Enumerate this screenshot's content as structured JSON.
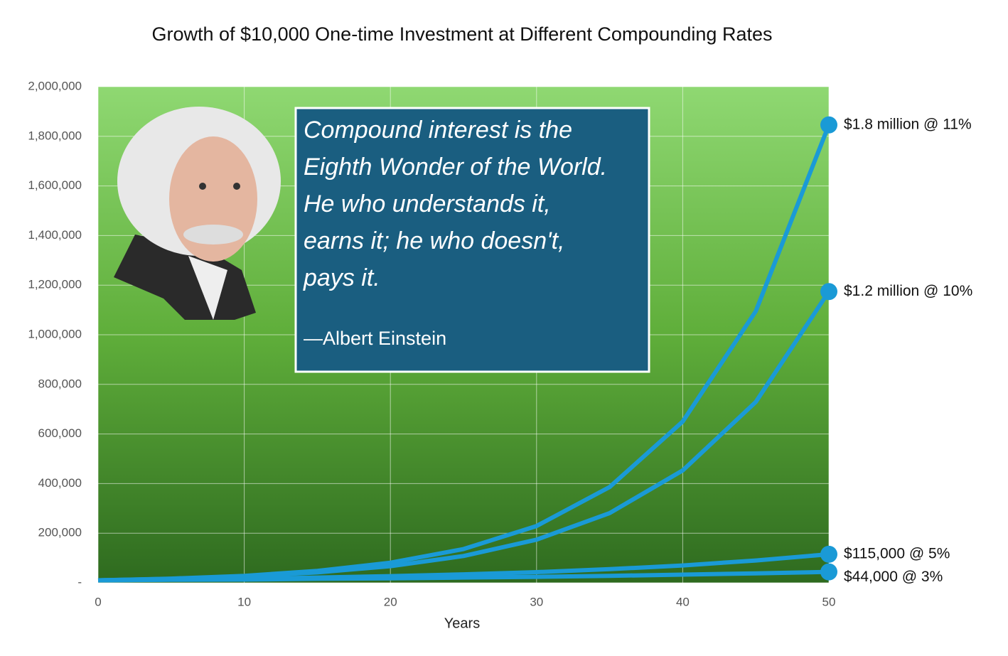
{
  "chart_data": {
    "type": "line",
    "title": "Growth of $10,000 One-time Investment at Different Compounding Rates",
    "x_label": "Years",
    "x": [
      0,
      5,
      10,
      15,
      20,
      25,
      30,
      35,
      40,
      45,
      50
    ],
    "series": [
      {
        "name": "$1.8 million @ 11%",
        "color": "#1a9ad6",
        "values": [
          10000,
          17000,
          28000,
          48000,
          81000,
          136000,
          229000,
          386000,
          650000,
          1095000,
          1846000
        ]
      },
      {
        "name": "$1.2 million @ 10%",
        "color": "#1a9ad6",
        "values": [
          10000,
          16000,
          26000,
          42000,
          67000,
          108000,
          174000,
          281000,
          453000,
          729000,
          1174000
        ]
      },
      {
        "name": "$115,000  @ 5%",
        "color": "#1a9ad6",
        "values": [
          10000,
          13000,
          16000,
          21000,
          27000,
          34000,
          43000,
          55000,
          70000,
          90000,
          115000
        ]
      },
      {
        "name": "$44,000  @ 3%",
        "color": "#1a9ad6",
        "values": [
          10000,
          12000,
          13000,
          16000,
          18000,
          21000,
          24000,
          28000,
          33000,
          38000,
          44000
        ]
      }
    ],
    "xlim": [
      0,
      50
    ],
    "xticks": [
      0,
      10,
      20,
      30,
      40,
      50
    ],
    "ylim": [
      0,
      2000000
    ],
    "yticks": [
      {
        "value": 0,
        "label": "-"
      },
      {
        "value": 200000,
        "label": "200,000"
      },
      {
        "value": 400000,
        "label": "400,000"
      },
      {
        "value": 600000,
        "label": "600,000"
      },
      {
        "value": 800000,
        "label": "800,000"
      },
      {
        "value": 1000000,
        "label": "1,000,000"
      },
      {
        "value": 1200000,
        "label": "1,200,000"
      },
      {
        "value": 1400000,
        "label": "1,400,000"
      },
      {
        "value": 1600000,
        "label": "1,600,000"
      },
      {
        "value": 1800000,
        "label": "1,800,000"
      },
      {
        "value": 2000000,
        "label": "2,000,000"
      }
    ],
    "grid": true,
    "quote": {
      "lines": [
        "Compound interest is the",
        "Eighth Wonder of the World.",
        "He who understands it,",
        "earns it; he who doesn't,",
        "pays it."
      ],
      "attribution": "—Albert Einstein"
    }
  }
}
